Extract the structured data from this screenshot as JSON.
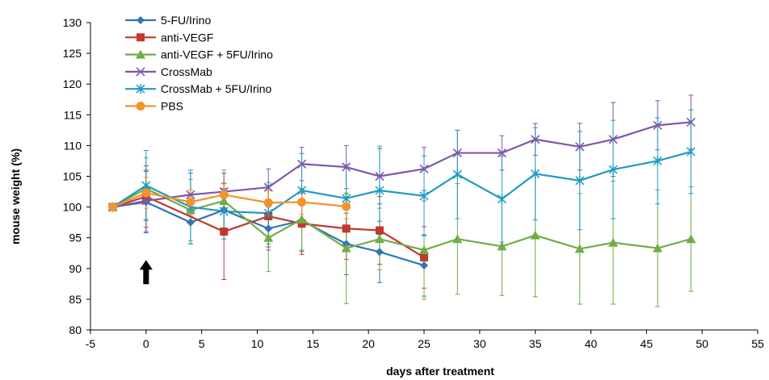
{
  "chart_data": {
    "type": "line",
    "title": "",
    "xlabel": "days after treatment",
    "ylabel": "mouse weight (%)",
    "xlim": [
      -5,
      55
    ],
    "ylim": [
      80,
      130
    ],
    "x_ticks": [
      -5,
      0,
      5,
      10,
      15,
      20,
      25,
      30,
      35,
      40,
      45,
      50,
      55
    ],
    "y_ticks": [
      80,
      85,
      90,
      95,
      100,
      105,
      110,
      115,
      120,
      125,
      130
    ],
    "legend_position": "top-left",
    "grid": false,
    "annotation": {
      "type": "arrow-up",
      "x": 0,
      "y": 88.5,
      "color": "#000000"
    },
    "series": [
      {
        "name": "5-FU/Irino",
        "color": "#2E75B6",
        "marker": "diamond",
        "x": [
          -3,
          0,
          4,
          7,
          11,
          14,
          18,
          21,
          25
        ],
        "y": [
          100,
          100.8,
          97.5,
          99.5,
          96.5,
          97.8,
          94,
          92.7,
          90.5
        ],
        "err": [
          0,
          5,
          3.5,
          3.5,
          3.5,
          5,
          5,
          5,
          5
        ]
      },
      {
        "name": "anti-VEGF",
        "color": "#C0392B",
        "marker": "square",
        "x": [
          -3,
          0,
          7,
          11,
          14,
          18,
          21,
          25
        ],
        "y": [
          100,
          101.7,
          96,
          98.5,
          97.3,
          96.5,
          96.2,
          91.8
        ],
        "err": [
          0,
          5,
          7.8,
          5,
          5,
          5,
          5.5,
          5
        ]
      },
      {
        "name": "anti-VEGF + 5FU/Irino",
        "color": "#70AD47",
        "marker": "triangle",
        "x": [
          -3,
          0,
          4,
          7,
          11,
          14,
          18,
          21,
          25,
          28,
          32,
          35,
          39,
          42,
          46,
          49
        ],
        "y": [
          100,
          103,
          99.5,
          101,
          95,
          98,
          93.3,
          94.8,
          93,
          94.8,
          93.6,
          95.4,
          93.2,
          94.2,
          93.3,
          94.8
        ],
        "err": [
          0,
          5,
          5,
          5,
          5.5,
          5,
          9,
          5,
          8,
          9,
          8,
          10,
          9,
          10,
          9.5,
          8.5
        ]
      },
      {
        "name": "CrossMab",
        "color": "#7E57A6",
        "marker": "x",
        "x": [
          -3,
          0,
          4,
          7,
          11,
          14,
          18,
          21,
          25,
          28,
          32,
          35,
          39,
          42,
          46,
          49
        ],
        "y": [
          100,
          101,
          102,
          102.5,
          103.2,
          107,
          106.5,
          105,
          106.2,
          108.8,
          108.8,
          111,
          109.8,
          111,
          113.3,
          113.8
        ],
        "err": [
          0,
          5,
          3.5,
          3,
          3,
          2.7,
          3.5,
          4.5,
          3.5,
          3.7,
          2.8,
          2.6,
          3.8,
          6,
          4,
          4.4
        ]
      },
      {
        "name": "CrossMab + 5FU/Irino",
        "color": "#1F9BC2",
        "marker": "asterisk",
        "x": [
          -3,
          0,
          4,
          7,
          11,
          14,
          18,
          21,
          25,
          28,
          32,
          35,
          39,
          42,
          46,
          49
        ],
        "y": [
          100,
          103.5,
          100,
          99.3,
          99,
          102.7,
          101.4,
          102.7,
          101.8,
          105.3,
          101.3,
          105.4,
          104.3,
          106.1,
          107.5,
          109
        ],
        "err": [
          0,
          5.7,
          6,
          4.5,
          5,
          6,
          5.5,
          7.2,
          6.5,
          7.2,
          7,
          7.5,
          8,
          8,
          7,
          6.8
        ]
      },
      {
        "name": "PBS",
        "color": "#F5922B",
        "marker": "circle",
        "x": [
          -3,
          0,
          4,
          7,
          11,
          14,
          18
        ],
        "y": [
          100,
          102.3,
          100.8,
          102,
          100.7,
          100.8,
          100.1
        ],
        "err": [
          0,
          2.5,
          2,
          2,
          2,
          2,
          2
        ]
      }
    ]
  }
}
